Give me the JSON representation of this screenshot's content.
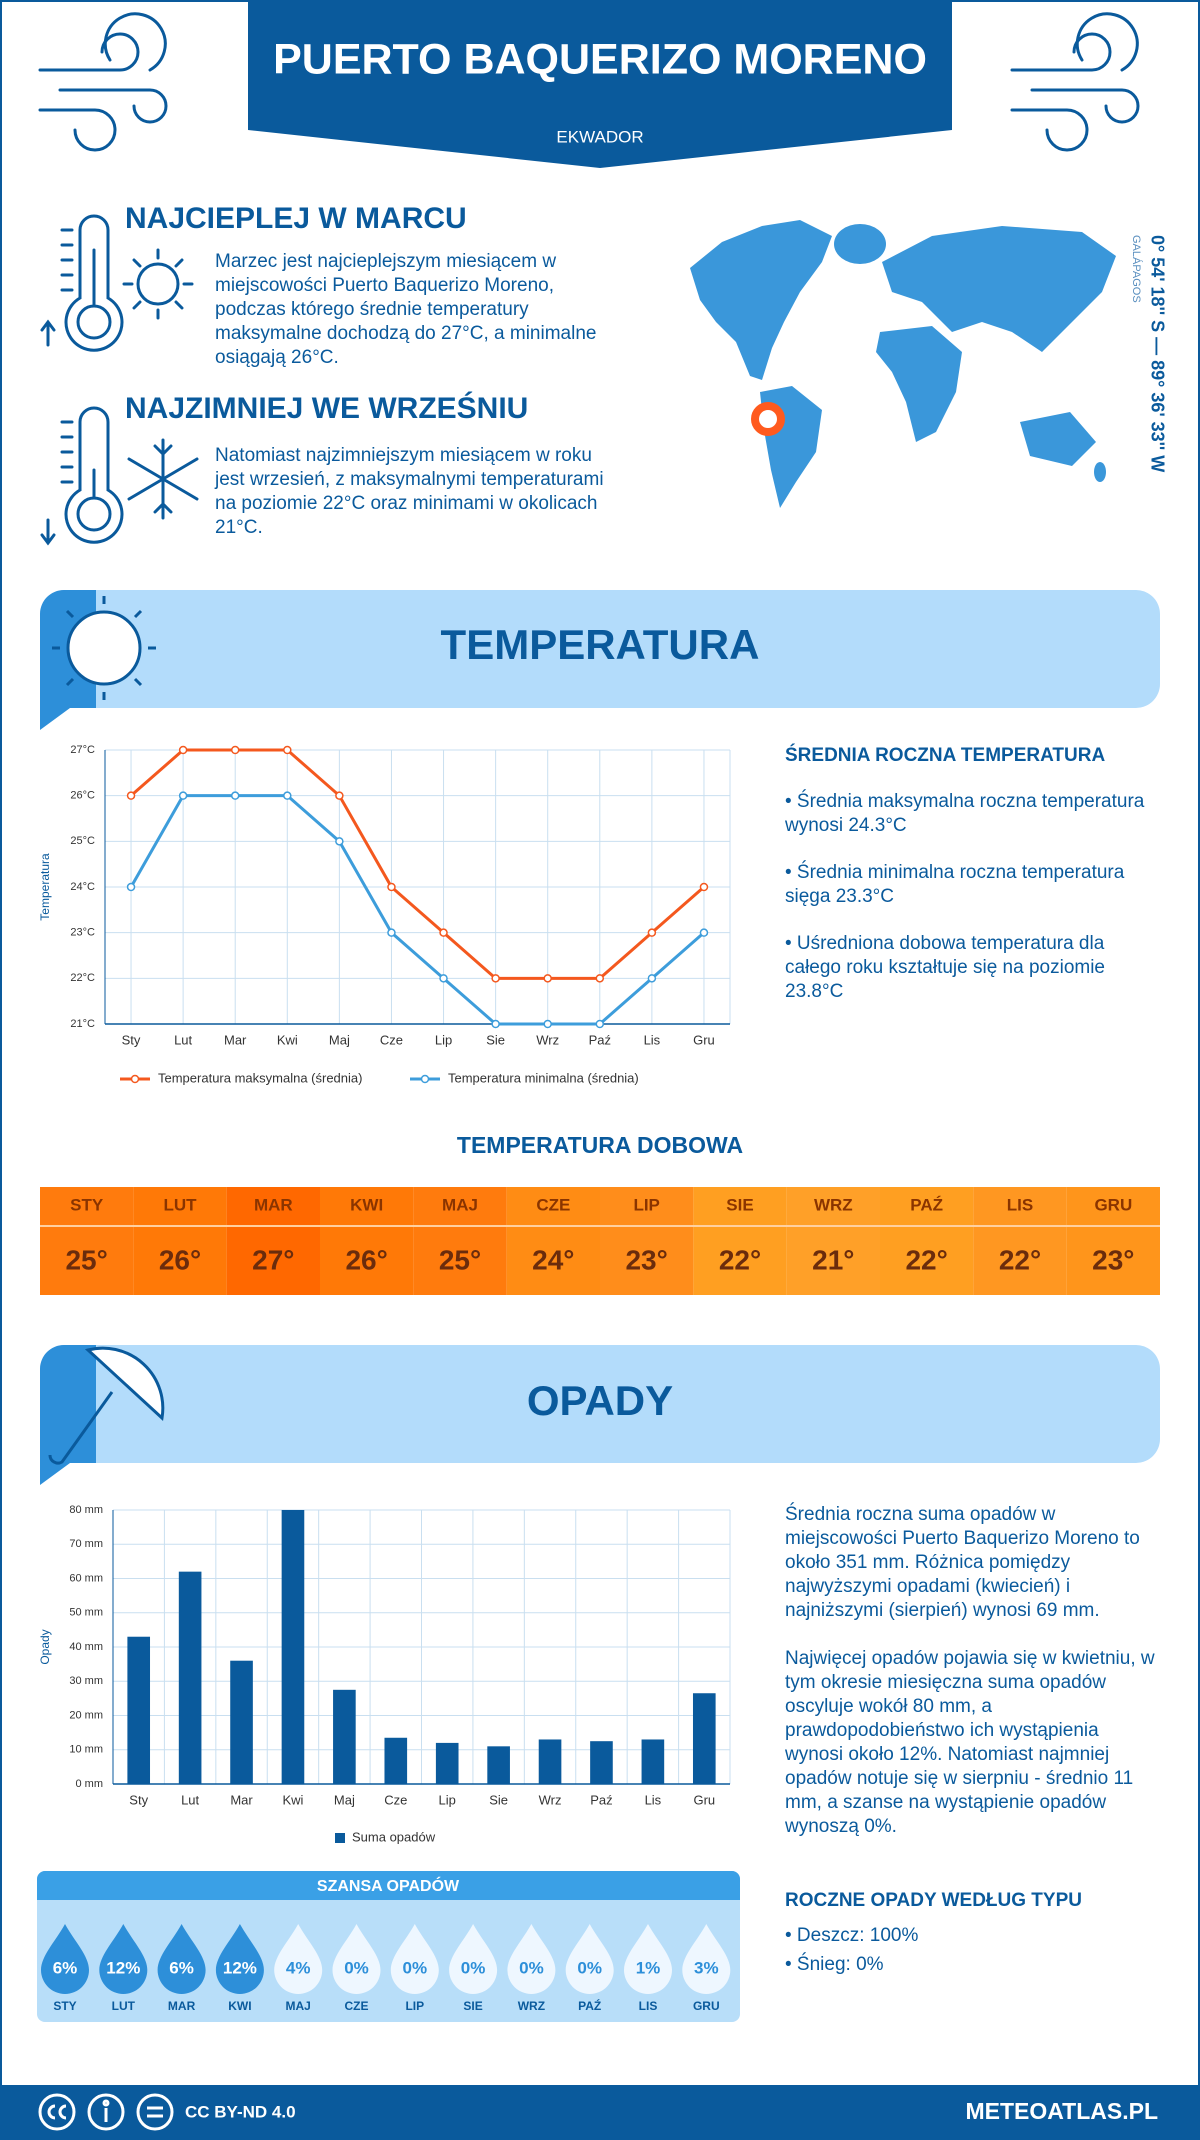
{
  "header": {
    "title": "PUERTO BAQUERIZO MORENO",
    "country": "EKWADOR"
  },
  "hottest": {
    "title": "NAJCIEPLEJ W MARCU",
    "text": "Marzec jest najcieplejszym miesiącem w miejscowości Puerto Baquerizo Moreno, podczas którego średnie temperatury maksymalne dochodzą do 27°C, a minimalne osiągają 26°C."
  },
  "coldest": {
    "title": "NAJZIMNIEJ WE WRZEŚNIU",
    "text": "Natomiast najzimniejszym miesiącem w roku jest wrzesień, z maksymalnymi temperaturami na poziomie 22°C oraz minimami w okolicach 21°C."
  },
  "location": {
    "coordinates": "0° 54' 18'' S — 89° 36' 33'' W",
    "region": "GALÁPAGOS"
  },
  "temperature_section": {
    "title": "TEMPERATURA",
    "summary_title": "ŚREDNIA ROCZNA TEMPERATURA",
    "summary": [
      "• Średnia maksymalna roczna temperatura wynosi 24.3°C",
      "• Średnia minimalna roczna temperatura sięga 23.3°C",
      "• Uśredniona dobowa temperatura dla całego roku kształtuje się na poziomie 23.8°C"
    ]
  },
  "chart_data": [
    {
      "type": "line",
      "y_label": "Temperatura",
      "categories": [
        "Sty",
        "Lut",
        "Mar",
        "Kwi",
        "Maj",
        "Cze",
        "Lip",
        "Sie",
        "Wrz",
        "Paź",
        "Lis",
        "Gru"
      ],
      "series": [
        {
          "name": "Temperatura maksymalna (średnia)",
          "color": "#f4581e",
          "values": [
            26,
            27,
            27,
            27,
            26,
            24,
            23,
            22,
            22,
            22,
            23,
            24
          ]
        },
        {
          "name": "Temperatura minimalna (średnia)",
          "color": "#3d9ddb",
          "values": [
            24,
            26,
            26,
            26,
            25,
            23,
            22,
            21,
            21,
            21,
            22,
            23
          ]
        }
      ],
      "ylim": [
        21,
        27
      ],
      "yticks": [
        {
          "value": 21,
          "label": "21°C"
        },
        {
          "value": 22,
          "label": "22°C"
        },
        {
          "value": 23,
          "label": "23°C"
        },
        {
          "value": 24,
          "label": "24°C"
        },
        {
          "value": 25,
          "label": "25°C"
        },
        {
          "value": 26,
          "label": "26°C"
        },
        {
          "value": 27,
          "label": "27°C"
        }
      ],
      "grid": true
    },
    {
      "type": "bar",
      "y_label": "Opady",
      "categories": [
        "Sty",
        "Lut",
        "Mar",
        "Kwi",
        "Maj",
        "Cze",
        "Lip",
        "Sie",
        "Wrz",
        "Paź",
        "Lis",
        "Gru"
      ],
      "series": [
        {
          "name": "Suma opadów",
          "color": "#0a5a9c",
          "values": [
            43,
            62,
            36,
            80,
            27.5,
            13.5,
            12,
            11,
            13,
            12.5,
            13,
            26.5
          ]
        }
      ],
      "ylim": [
        0,
        80
      ],
      "yticks": [
        {
          "value": 0,
          "label": "0 mm"
        },
        {
          "value": 10,
          "label": "10 mm"
        },
        {
          "value": 20,
          "label": "20 mm"
        },
        {
          "value": 30,
          "label": "30 mm"
        },
        {
          "value": 40,
          "label": "40 mm"
        },
        {
          "value": 50,
          "label": "50 mm"
        },
        {
          "value": 60,
          "label": "60 mm"
        },
        {
          "value": 70,
          "label": "70 mm"
        },
        {
          "value": 80,
          "label": "80 mm"
        }
      ],
      "grid": true
    }
  ],
  "daily_temperature": {
    "title": "TEMPERATURA DOBOWA",
    "months": [
      "STY",
      "LUT",
      "MAR",
      "KWI",
      "MAJ",
      "CZE",
      "LIP",
      "SIE",
      "WRZ",
      "PAŹ",
      "LIS",
      "GRU"
    ],
    "values": [
      25,
      26,
      27,
      26,
      25,
      24,
      23,
      22,
      21,
      22,
      22,
      23
    ],
    "value_labels": [
      "25°",
      "26°",
      "27°",
      "26°",
      "25°",
      "24°",
      "23°",
      "22°",
      "21°",
      "22°",
      "22°",
      "23°"
    ]
  },
  "precipitation_section": {
    "title": "OPADY",
    "text": [
      "Średnia roczna suma opadów w miejscowości Puerto Baquerizo Moreno to około 351 mm. Różnica pomiędzy najwyższymi opadami (kwiecień) i najniższymi (sierpień) wynosi 69 mm.",
      "Najwięcej opadów pojawia się w kwietniu, w tym okresie miesięczna suma opadów oscyluje wokół 80 mm, a prawdopodobieństwo ich wystąpienia wynosi około 12%. Natomiast najmniej opadów notuje się w sierpniu - średnio 11 mm, a szanse na wystąpienie opadów wynoszą 0%."
    ],
    "type_title": "ROCZNE OPADY WEDŁUG TYPU",
    "types": [
      "• Deszcz: 100%",
      "• Śnieg: 0%"
    ]
  },
  "rain_chance": {
    "title": "SZANSA OPADÓW",
    "months": [
      "STY",
      "LUT",
      "MAR",
      "KWI",
      "MAJ",
      "CZE",
      "LIP",
      "SIE",
      "WRZ",
      "PAŹ",
      "LIS",
      "GRU"
    ],
    "values": [
      6,
      12,
      6,
      12,
      4,
      0,
      0,
      0,
      0,
      0,
      1,
      3
    ],
    "value_labels": [
      "6%",
      "12%",
      "6%",
      "12%",
      "4%",
      "0%",
      "0%",
      "0%",
      "0%",
      "0%",
      "1%",
      "3%"
    ]
  },
  "footer": {
    "license": "CC BY-ND 4.0",
    "site": "METEOATLAS.PL"
  }
}
